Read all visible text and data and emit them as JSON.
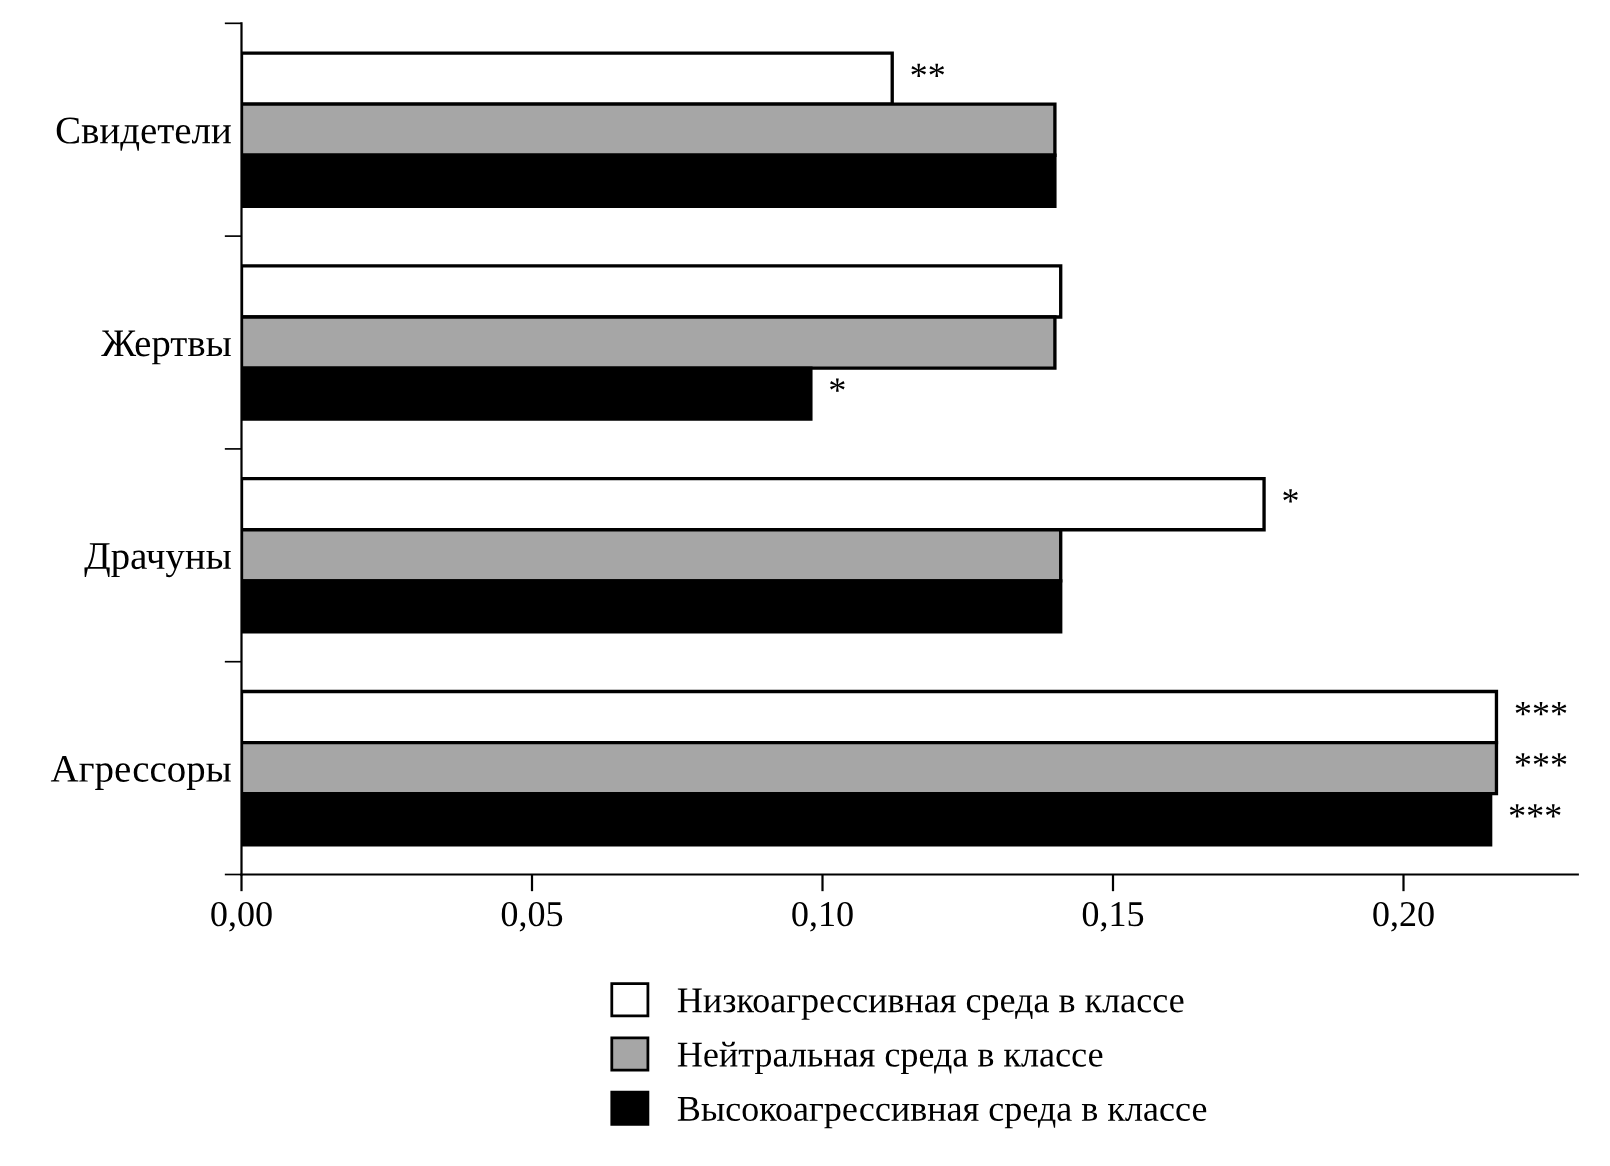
{
  "chart_data": {
    "type": "bar",
    "orientation": "horizontal",
    "categories": [
      "Свидетели",
      "Жертвы",
      "Драчуны",
      "Агрессоры"
    ],
    "series": [
      {
        "name": "Низкоагрессивная среда в классе",
        "color": "#ffffff",
        "values": [
          0.112,
          0.141,
          0.176,
          0.216
        ],
        "value_labels": [
          "**",
          null,
          "*",
          "***"
        ]
      },
      {
        "name": "Нейтральная среда в классе",
        "color": "#a6a6a6",
        "values": [
          0.14,
          0.14,
          0.141,
          0.216
        ],
        "value_labels": [
          null,
          null,
          null,
          "***"
        ]
      },
      {
        "name": "Высокоагрессивная среда в классе",
        "color": "#000000",
        "values": [
          0.14,
          0.098,
          0.141,
          0.215
        ],
        "value_labels": [
          null,
          "*",
          null,
          "***"
        ]
      }
    ],
    "xlim": [
      0,
      0.23
    ],
    "xticks": [
      {
        "value": 0,
        "label": "0,00"
      },
      {
        "value": 0.05,
        "label": "0,05"
      },
      {
        "value": 0.1,
        "label": "0,10"
      },
      {
        "value": 0.15,
        "label": "0,15"
      },
      {
        "value": 0.2,
        "label": "0,20"
      }
    ],
    "grid": false,
    "legend": "bottom"
  }
}
